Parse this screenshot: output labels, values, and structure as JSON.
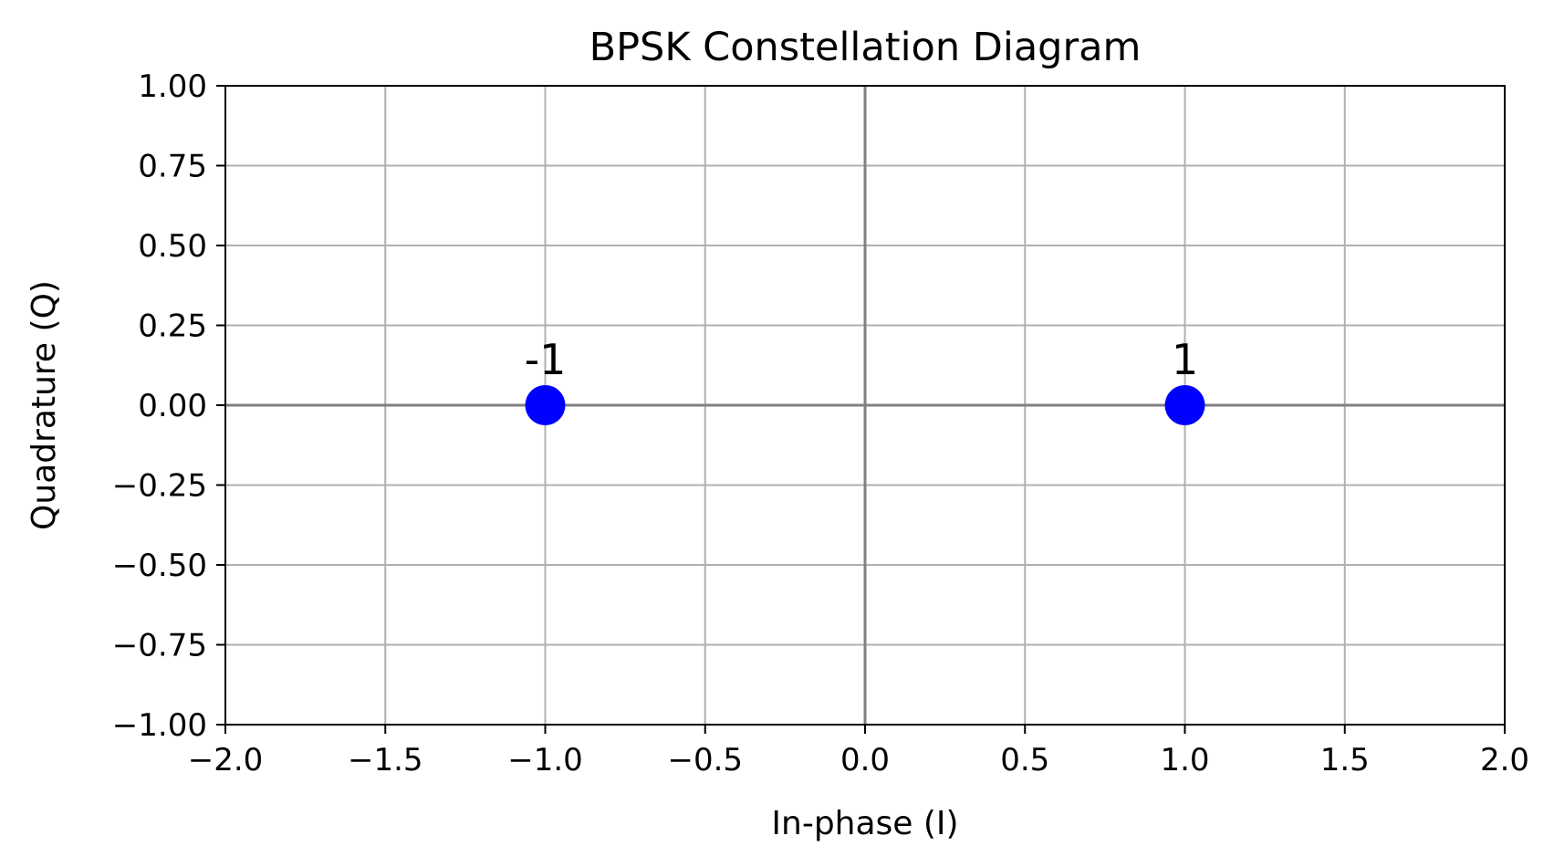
{
  "chart_data": {
    "type": "scatter",
    "title": "BPSK Constellation Diagram",
    "xlabel": "In-phase (I)",
    "ylabel": "Quadrature (Q)",
    "xlim": [
      -2.0,
      2.0
    ],
    "ylim": [
      -1.0,
      1.0
    ],
    "xticks": [
      -2.0,
      -1.5,
      -1.0,
      -0.5,
      0.0,
      0.5,
      1.0,
      1.5,
      2.0
    ],
    "xtick_labels": [
      "−2.0",
      "−1.5",
      "−1.0",
      "−0.5",
      "0.0",
      "0.5",
      "1.0",
      "1.5",
      "2.0"
    ],
    "yticks": [
      1.0,
      0.75,
      0.5,
      0.25,
      0.0,
      -0.25,
      -0.5,
      -0.75,
      -1.0
    ],
    "ytick_labels": [
      "1.00",
      "0.75",
      "0.50",
      "0.25",
      "0.00",
      "−0.25",
      "−0.50",
      "−0.75",
      "−1.00"
    ],
    "grid": true,
    "zero_lines": true,
    "points": [
      {
        "x": -1,
        "y": 0,
        "label": "-1"
      },
      {
        "x": 1,
        "y": 0,
        "label": "1"
      }
    ],
    "colors": {
      "points": "#0000ff",
      "grid": "#b0b0b0",
      "zero_lines": "#808080",
      "axes": "#000000"
    }
  }
}
